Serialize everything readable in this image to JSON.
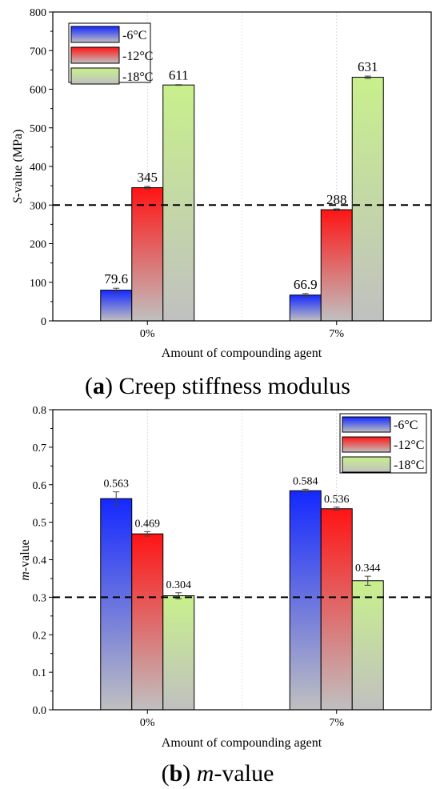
{
  "chart_data": [
    {
      "type": "bar",
      "caption_letter": "a",
      "caption_text": " Creep stiffness modulus",
      "ylabel_italic": "S",
      "ylabel_rest": "-value (MPa)",
      "xlabel": "Amount of compounding agent",
      "categories": [
        "0%",
        "7%"
      ],
      "ylim": [
        0,
        800
      ],
      "yticks": [
        0,
        100,
        200,
        300,
        400,
        500,
        600,
        700,
        800
      ],
      "reference_line": 300,
      "legend_position": "top-left",
      "series": [
        {
          "name": "-6°C",
          "values": [
            79.6,
            66.9
          ],
          "errors": [
            5,
            4
          ],
          "labels": [
            "79.6",
            "66.9"
          ]
        },
        {
          "name": "-12°C",
          "values": [
            345,
            288
          ],
          "errors": [
            3,
            2
          ],
          "labels": [
            "345",
            "288"
          ]
        },
        {
          "name": "-18°C",
          "values": [
            611,
            631
          ],
          "errors": [
            1,
            3
          ],
          "labels": [
            "611",
            "631"
          ]
        }
      ]
    },
    {
      "type": "bar",
      "caption_letter": "b",
      "caption_text": " m-value",
      "caption_italic": "m",
      "caption_rest": "-value",
      "ylabel_italic": "m",
      "ylabel_rest": "-value",
      "xlabel": "Amount of compounding agent",
      "categories": [
        "0%",
        "7%"
      ],
      "ylim": [
        0,
        0.8
      ],
      "yticks": [
        "0.0",
        "0.1",
        "0.2",
        "0.3",
        "0.4",
        "0.5",
        "0.6",
        "0.7",
        "0.8"
      ],
      "reference_line": 0.3,
      "legend_position": "top-right",
      "series": [
        {
          "name": "-6°C",
          "values": [
            0.563,
            0.584
          ],
          "errors": [
            0.018,
            0.004
          ],
          "labels": [
            "0.563",
            "0.584"
          ]
        },
        {
          "name": "-12°C",
          "values": [
            0.469,
            0.536
          ],
          "errors": [
            0.006,
            0.004
          ],
          "labels": [
            "0.469",
            "0.536"
          ]
        },
        {
          "name": "-18°C",
          "values": [
            0.304,
            0.344
          ],
          "errors": [
            0.008,
            0.012
          ],
          "labels": [
            "0.304",
            "0.344"
          ]
        }
      ]
    }
  ],
  "colors": {
    "series_top": [
      "#1428ff",
      "#ff1414",
      "#c8f08c"
    ],
    "bottom": "#c0c0c0",
    "reference_line": "#000000"
  }
}
